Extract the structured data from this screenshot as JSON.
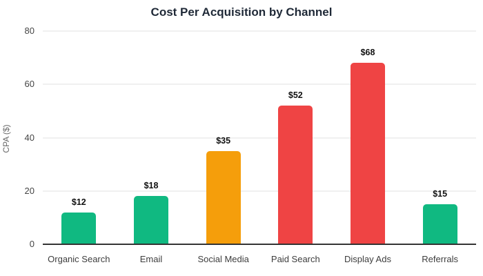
{
  "chart_data": {
    "type": "bar",
    "title": "Cost Per Acquisition by Channel",
    "xlabel": "",
    "ylabel": "CPA ($)",
    "categories": [
      "Organic Search",
      "Email",
      "Social Media",
      "Paid Search",
      "Display Ads",
      "Referrals"
    ],
    "values": [
      12,
      18,
      35,
      52,
      68,
      15
    ],
    "value_labels": [
      "$12",
      "$18",
      "$35",
      "$52",
      "$68",
      "$15"
    ],
    "bar_colors": [
      "#10b981",
      "#10b981",
      "#f59e0b",
      "#ef4444",
      "#ef4444",
      "#10b981"
    ],
    "ylim": [
      0,
      80
    ],
    "yticks": [
      0,
      20,
      40,
      60,
      80
    ],
    "grid": "horizontal",
    "legend": "none",
    "colors": {
      "green": "#10b981",
      "orange": "#f59e0b",
      "red": "#ef4444",
      "title_text": "#1f2937",
      "tick_text": "#444444",
      "category_text": "#3d3d3d",
      "value_text": "#111111",
      "gridline": "#f0f0f0",
      "axis_line": "#333333",
      "background": "#ffffff"
    }
  }
}
